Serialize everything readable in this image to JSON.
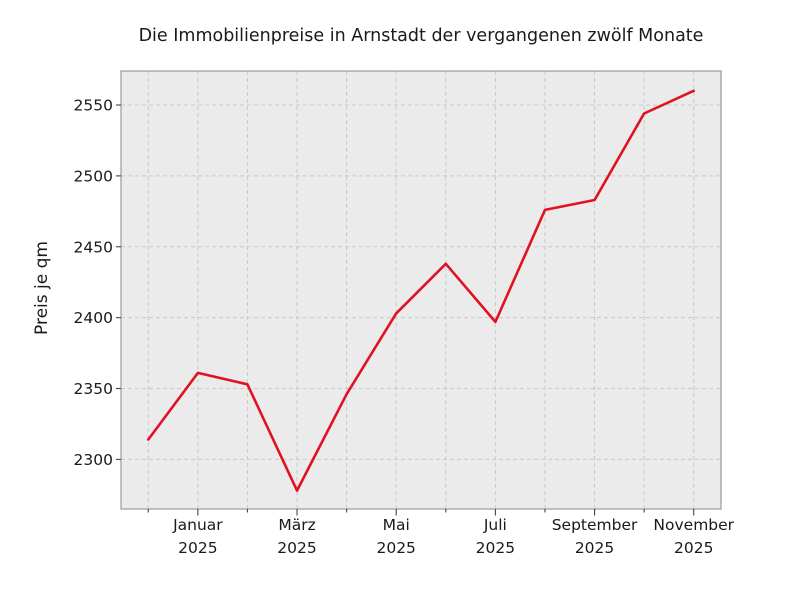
{
  "chart_data": {
    "type": "line",
    "title": "Die Immobilienpreise in Arnstadt der vergangenen zwölf Monate",
    "ylabel": "Preis je qm",
    "xlabel": "",
    "n_points": 12,
    "x_tick_labels": [
      {
        "index": 1,
        "month": "Januar",
        "year": "2025"
      },
      {
        "index": 3,
        "month": "März",
        "year": "2025"
      },
      {
        "index": 5,
        "month": "Mai",
        "year": "2025"
      },
      {
        "index": 7,
        "month": "Juli",
        "year": "2025"
      },
      {
        "index": 9,
        "month": "September",
        "year": "2025"
      },
      {
        "index": 11,
        "month": "November",
        "year": "2025"
      }
    ],
    "y_ticks": [
      2300,
      2350,
      2400,
      2450,
      2500,
      2550
    ],
    "ylim": [
      2265,
      2574
    ],
    "xlim_months": [
      -0.55,
      11.55
    ],
    "grid": true,
    "legend": "none",
    "series": [
      {
        "name": "Preis je qm",
        "color": "#e01222",
        "values": [
          2314,
          2361,
          2353,
          2278,
          2346,
          2403,
          2438,
          2397,
          2476,
          2483,
          2544,
          2560
        ]
      }
    ],
    "colors": {
      "plot_background": "#ebebeb",
      "grid_line": "#c9c9c9",
      "plot_border": "#999999",
      "tick_mark": "#444444",
      "text": "#1a1a1a",
      "figure_background": "#ffffff"
    }
  }
}
